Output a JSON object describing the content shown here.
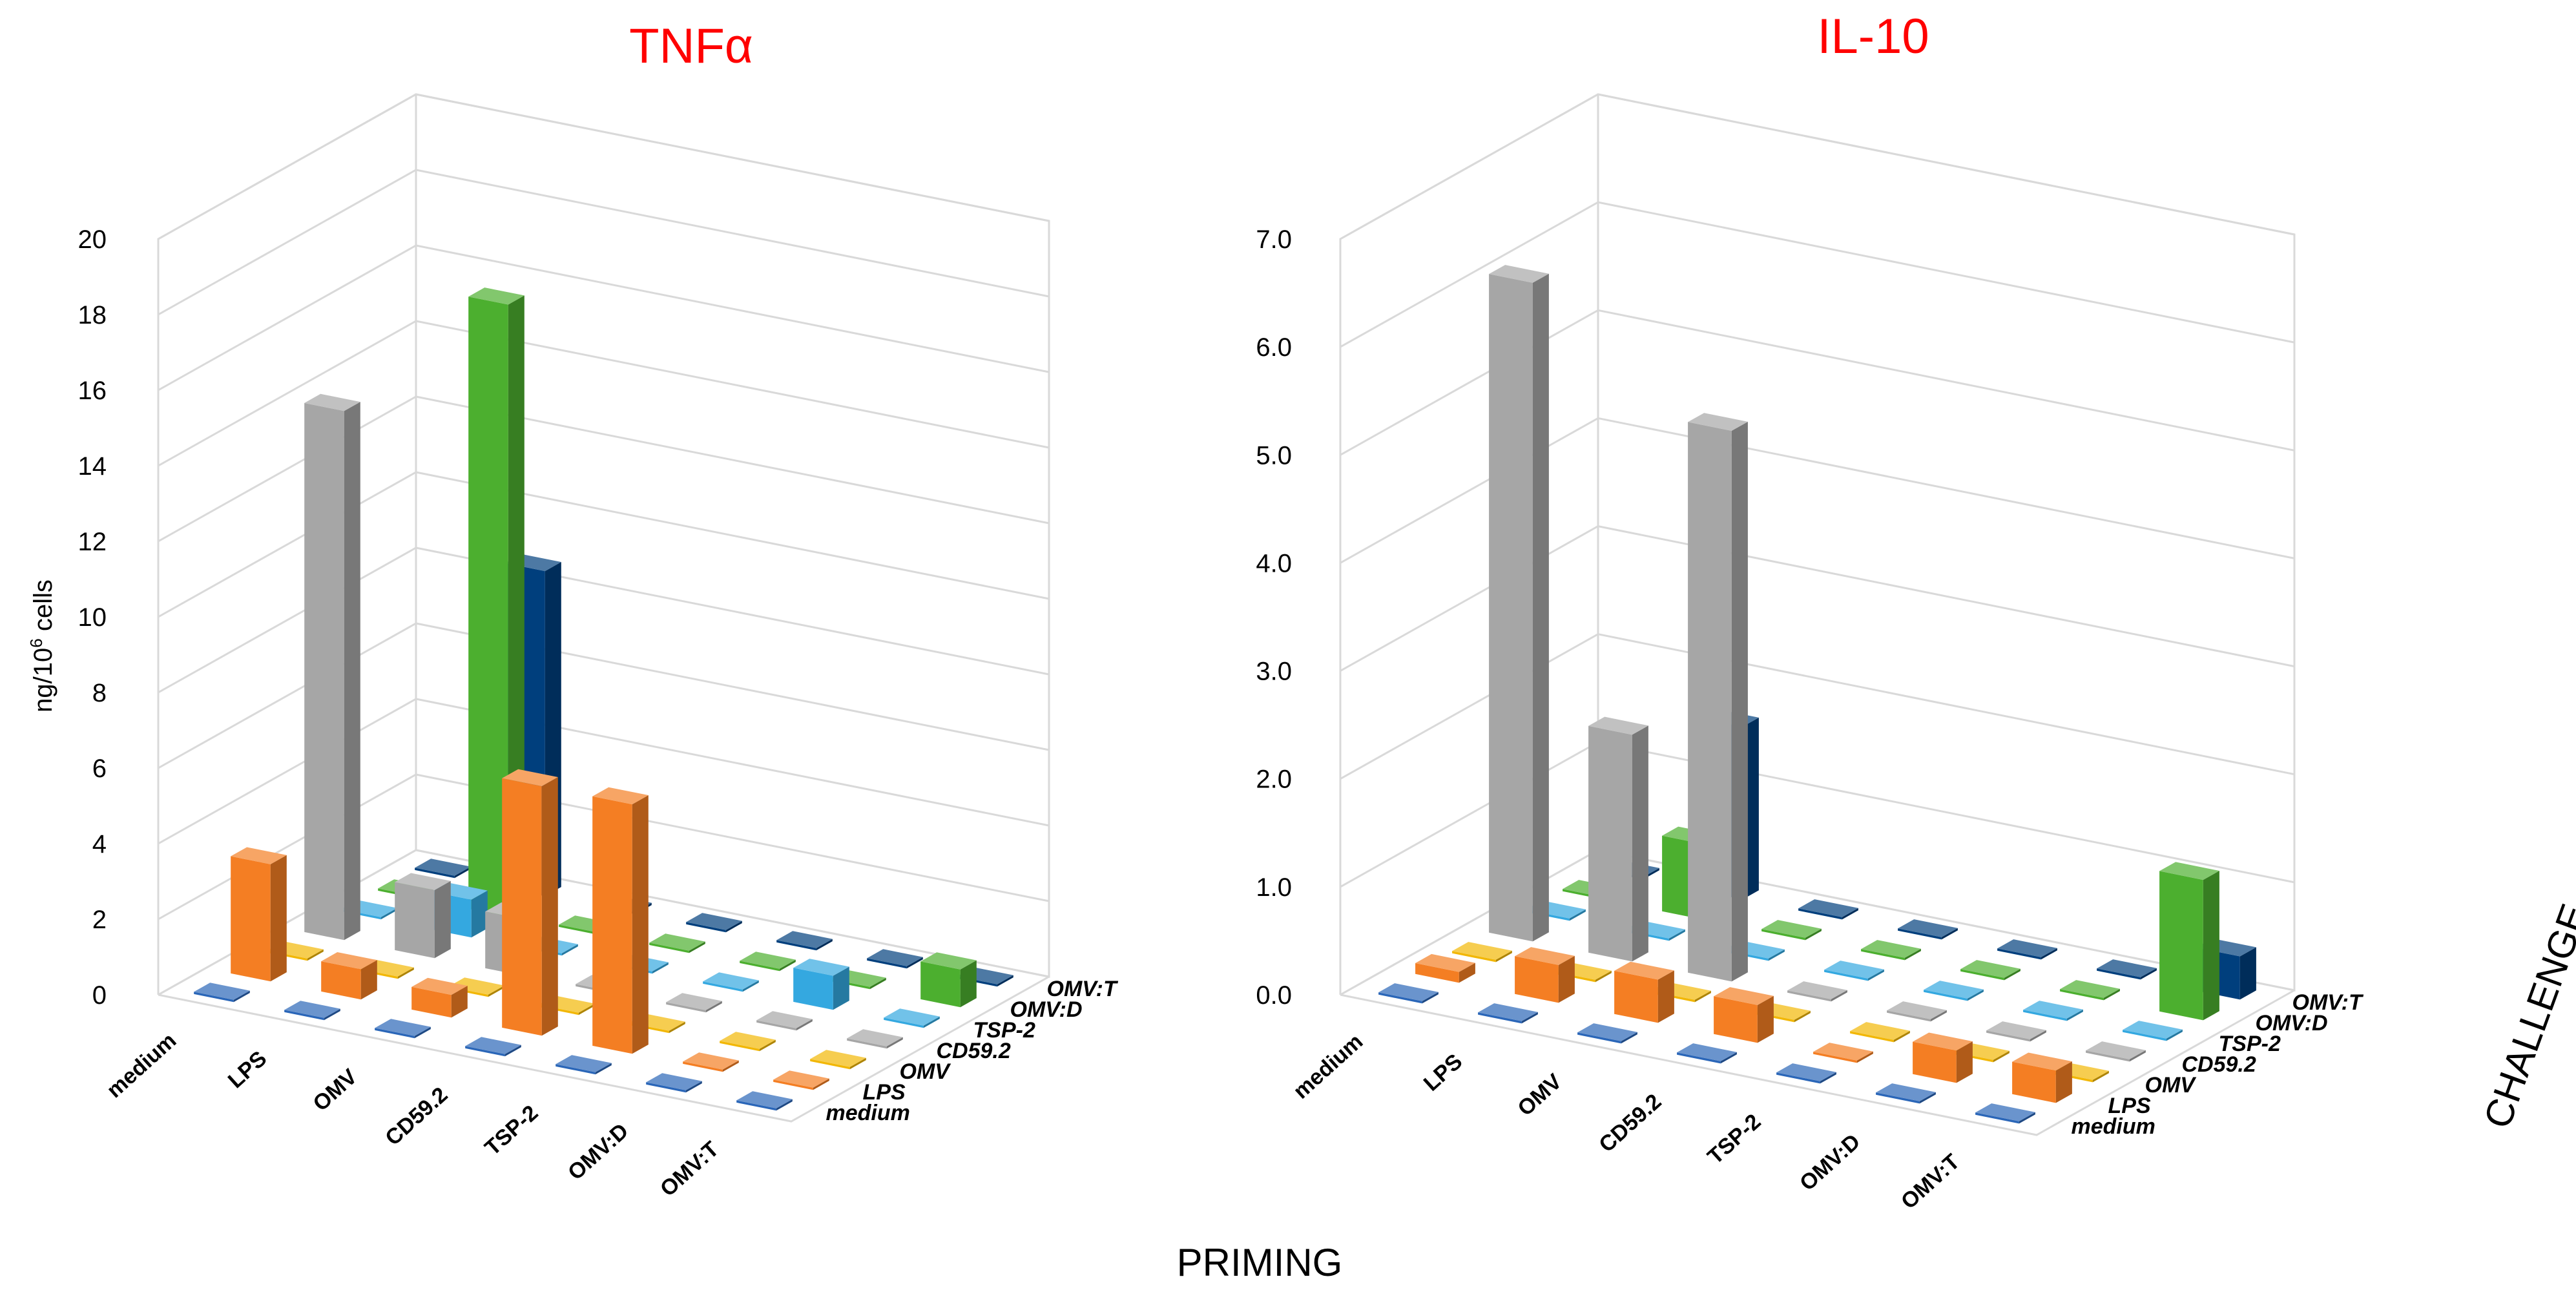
{
  "colors": {
    "medium": "#2a66b8",
    "LPS": "#f47e23",
    "OMV": "#f2b705",
    "CD59.2": "#a6a6a6",
    "TSP-2": "#34a8e0",
    "OMV:D": "#4caf2f",
    "OMV:T": "#003f7d",
    "title": "#ff0000"
  },
  "axis_labels": {
    "priming": "PRIMING",
    "challenge": "CHALLENGE"
  },
  "chart_data": [
    {
      "type": "bar3d",
      "title": "TNFα",
      "ylabel_main": "ng/10",
      "ylabel_sup": "6",
      "ylabel_tail": " cells",
      "ylim": [
        0,
        20
      ],
      "yticks": [
        "0",
        "2",
        "4",
        "6",
        "8",
        "10",
        "12",
        "14",
        "16",
        "18",
        "20"
      ],
      "priming": [
        "medium",
        "LPS",
        "OMV",
        "CD59.2",
        "TSP-2",
        "OMV:D",
        "OMV:T"
      ],
      "challenge": [
        "medium",
        "LPS",
        "OMV",
        "CD59.2",
        "TSP-2",
        "OMV:D",
        "OMV:T"
      ],
      "series": [
        {
          "name": "medium",
          "values": [
            0,
            0,
            0,
            0,
            0,
            0,
            0
          ]
        },
        {
          "name": "LPS",
          "values": [
            3.1,
            0.8,
            0.6,
            6.6,
            6.6,
            0,
            0
          ]
        },
        {
          "name": "OMV",
          "values": [
            0,
            0,
            0,
            0,
            0,
            0,
            0
          ]
        },
        {
          "name": "CD59.2",
          "values": [
            14,
            1.8,
            1.5,
            0,
            0,
            0,
            0
          ]
        },
        {
          "name": "TSP-2",
          "values": [
            0,
            1.0,
            0,
            0,
            0,
            0.9,
            0
          ]
        },
        {
          "name": "OMV:D",
          "values": [
            0,
            16.2,
            0,
            0,
            0,
            0,
            1.0
          ]
        },
        {
          "name": "OMV:T",
          "values": [
            0,
            8.6,
            0,
            0,
            0,
            0,
            0
          ]
        }
      ]
    },
    {
      "type": "bar3d",
      "title": "IL-10",
      "ylim": [
        0,
        7
      ],
      "yticks": [
        "0.0",
        "1.0",
        "2.0",
        "3.0",
        "4.0",
        "5.0",
        "6.0",
        "7.0"
      ],
      "priming": [
        "medium",
        "LPS",
        "OMV",
        "CD59.2",
        "TSP-2",
        "OMV:D",
        "OMV:T"
      ],
      "challenge": [
        "medium",
        "LPS",
        "OMV",
        "CD59.2",
        "TSP-2",
        "OMV:D",
        "OMV:T"
      ],
      "series": [
        {
          "name": "medium",
          "values": [
            0,
            0,
            0,
            0,
            0,
            0,
            0
          ]
        },
        {
          "name": "LPS",
          "values": [
            0.1,
            0.35,
            0.4,
            0.35,
            0,
            0.3,
            0.3
          ]
        },
        {
          "name": "OMV",
          "values": [
            0,
            0,
            0,
            0,
            0,
            0,
            0
          ]
        },
        {
          "name": "CD59.2",
          "values": [
            6.1,
            2.1,
            5.1,
            0,
            0,
            0,
            0
          ]
        },
        {
          "name": "TSP-2",
          "values": [
            0,
            0,
            0,
            0,
            0,
            0,
            0
          ]
        },
        {
          "name": "OMV:D",
          "values": [
            0,
            0.7,
            0,
            0,
            0,
            0,
            1.3
          ]
        },
        {
          "name": "OMV:T",
          "values": [
            0,
            1.6,
            0,
            0,
            0,
            0,
            0.4
          ]
        }
      ]
    }
  ]
}
